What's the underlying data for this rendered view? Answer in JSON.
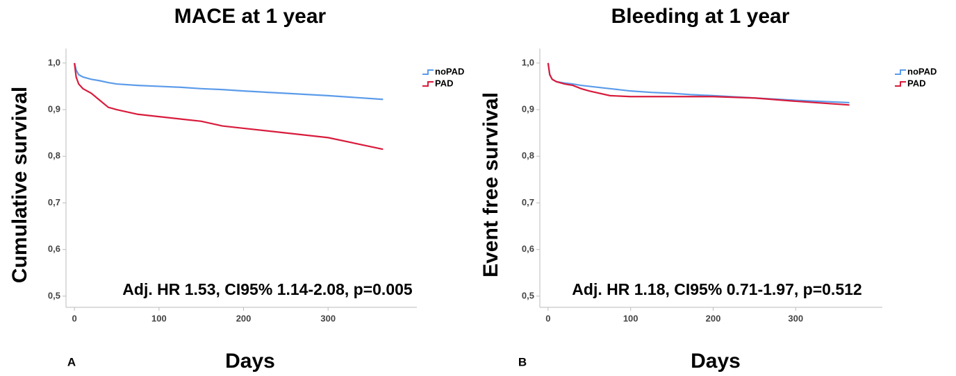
{
  "chart_data": [
    {
      "type": "line",
      "step": true,
      "title": "MACE at 1 year",
      "y_label": "Cumulative survival",
      "x_label": "Days",
      "panel_label": "A",
      "annotation": "Adj. HR 1.53, CI95% 1.14-2.08, p=0.005",
      "legend": "upper right",
      "x": [
        0,
        2,
        5,
        10,
        20,
        30,
        40,
        50,
        75,
        100,
        125,
        150,
        175,
        200,
        250,
        300,
        365
      ],
      "series": [
        {
          "name": "noPAD",
          "color": "#5b9bea",
          "values": [
            1.0,
            0.985,
            0.975,
            0.97,
            0.965,
            0.962,
            0.958,
            0.955,
            0.952,
            0.95,
            0.948,
            0.945,
            0.943,
            0.94,
            0.935,
            0.93,
            0.922
          ]
        },
        {
          "name": "PAD",
          "color": "#d81b3c",
          "values": [
            1.0,
            0.97,
            0.955,
            0.945,
            0.935,
            0.92,
            0.905,
            0.9,
            0.89,
            0.885,
            0.88,
            0.875,
            0.865,
            0.86,
            0.85,
            0.84,
            0.815
          ]
        }
      ],
      "xlim": [
        -10,
        405
      ],
      "xticks": [
        0,
        100,
        200,
        300
      ],
      "ylim": [
        0.476,
        1.031
      ],
      "yticks": [
        {
          "value": 0.5,
          "label": "0,5"
        },
        {
          "value": 0.6,
          "label": "0,6"
        },
        {
          "value": 0.7,
          "label": "0,7"
        },
        {
          "value": 0.8,
          "label": "0,8"
        },
        {
          "value": 0.9,
          "label": "0,9"
        },
        {
          "value": 1.0,
          "label": "1,0"
        }
      ]
    },
    {
      "type": "line",
      "step": true,
      "title": "Bleeding at 1 year",
      "y_label": "Event free survival",
      "x_label": "Days",
      "panel_label": "B",
      "annotation": "Adj. HR 1.18, CI95% 0.71-1.97, p=0.512",
      "legend": "upper right",
      "x": [
        0,
        2,
        5,
        10,
        20,
        30,
        40,
        50,
        75,
        100,
        125,
        150,
        175,
        200,
        250,
        300,
        365
      ],
      "series": [
        {
          "name": "noPAD",
          "color": "#5b9bea",
          "values": [
            1.0,
            0.975,
            0.965,
            0.96,
            0.957,
            0.955,
            0.952,
            0.95,
            0.945,
            0.94,
            0.937,
            0.935,
            0.932,
            0.93,
            0.925,
            0.92,
            0.915
          ]
        },
        {
          "name": "PAD",
          "color": "#d81b3c",
          "values": [
            1.0,
            0.975,
            0.965,
            0.96,
            0.955,
            0.952,
            0.945,
            0.94,
            0.93,
            0.928,
            0.928,
            0.928,
            0.928,
            0.928,
            0.925,
            0.918,
            0.91
          ]
        }
      ],
      "xlim": [
        -10,
        405
      ],
      "xticks": [
        0,
        100,
        200,
        300
      ],
      "ylim": [
        0.476,
        1.031
      ],
      "yticks": [
        {
          "value": 0.5,
          "label": "0,5"
        },
        {
          "value": 0.6,
          "label": "0,6"
        },
        {
          "value": 0.7,
          "label": "0,7"
        },
        {
          "value": 0.8,
          "label": "0,8"
        },
        {
          "value": 0.9,
          "label": "0,9"
        },
        {
          "value": 1.0,
          "label": "1,0"
        }
      ]
    }
  ]
}
